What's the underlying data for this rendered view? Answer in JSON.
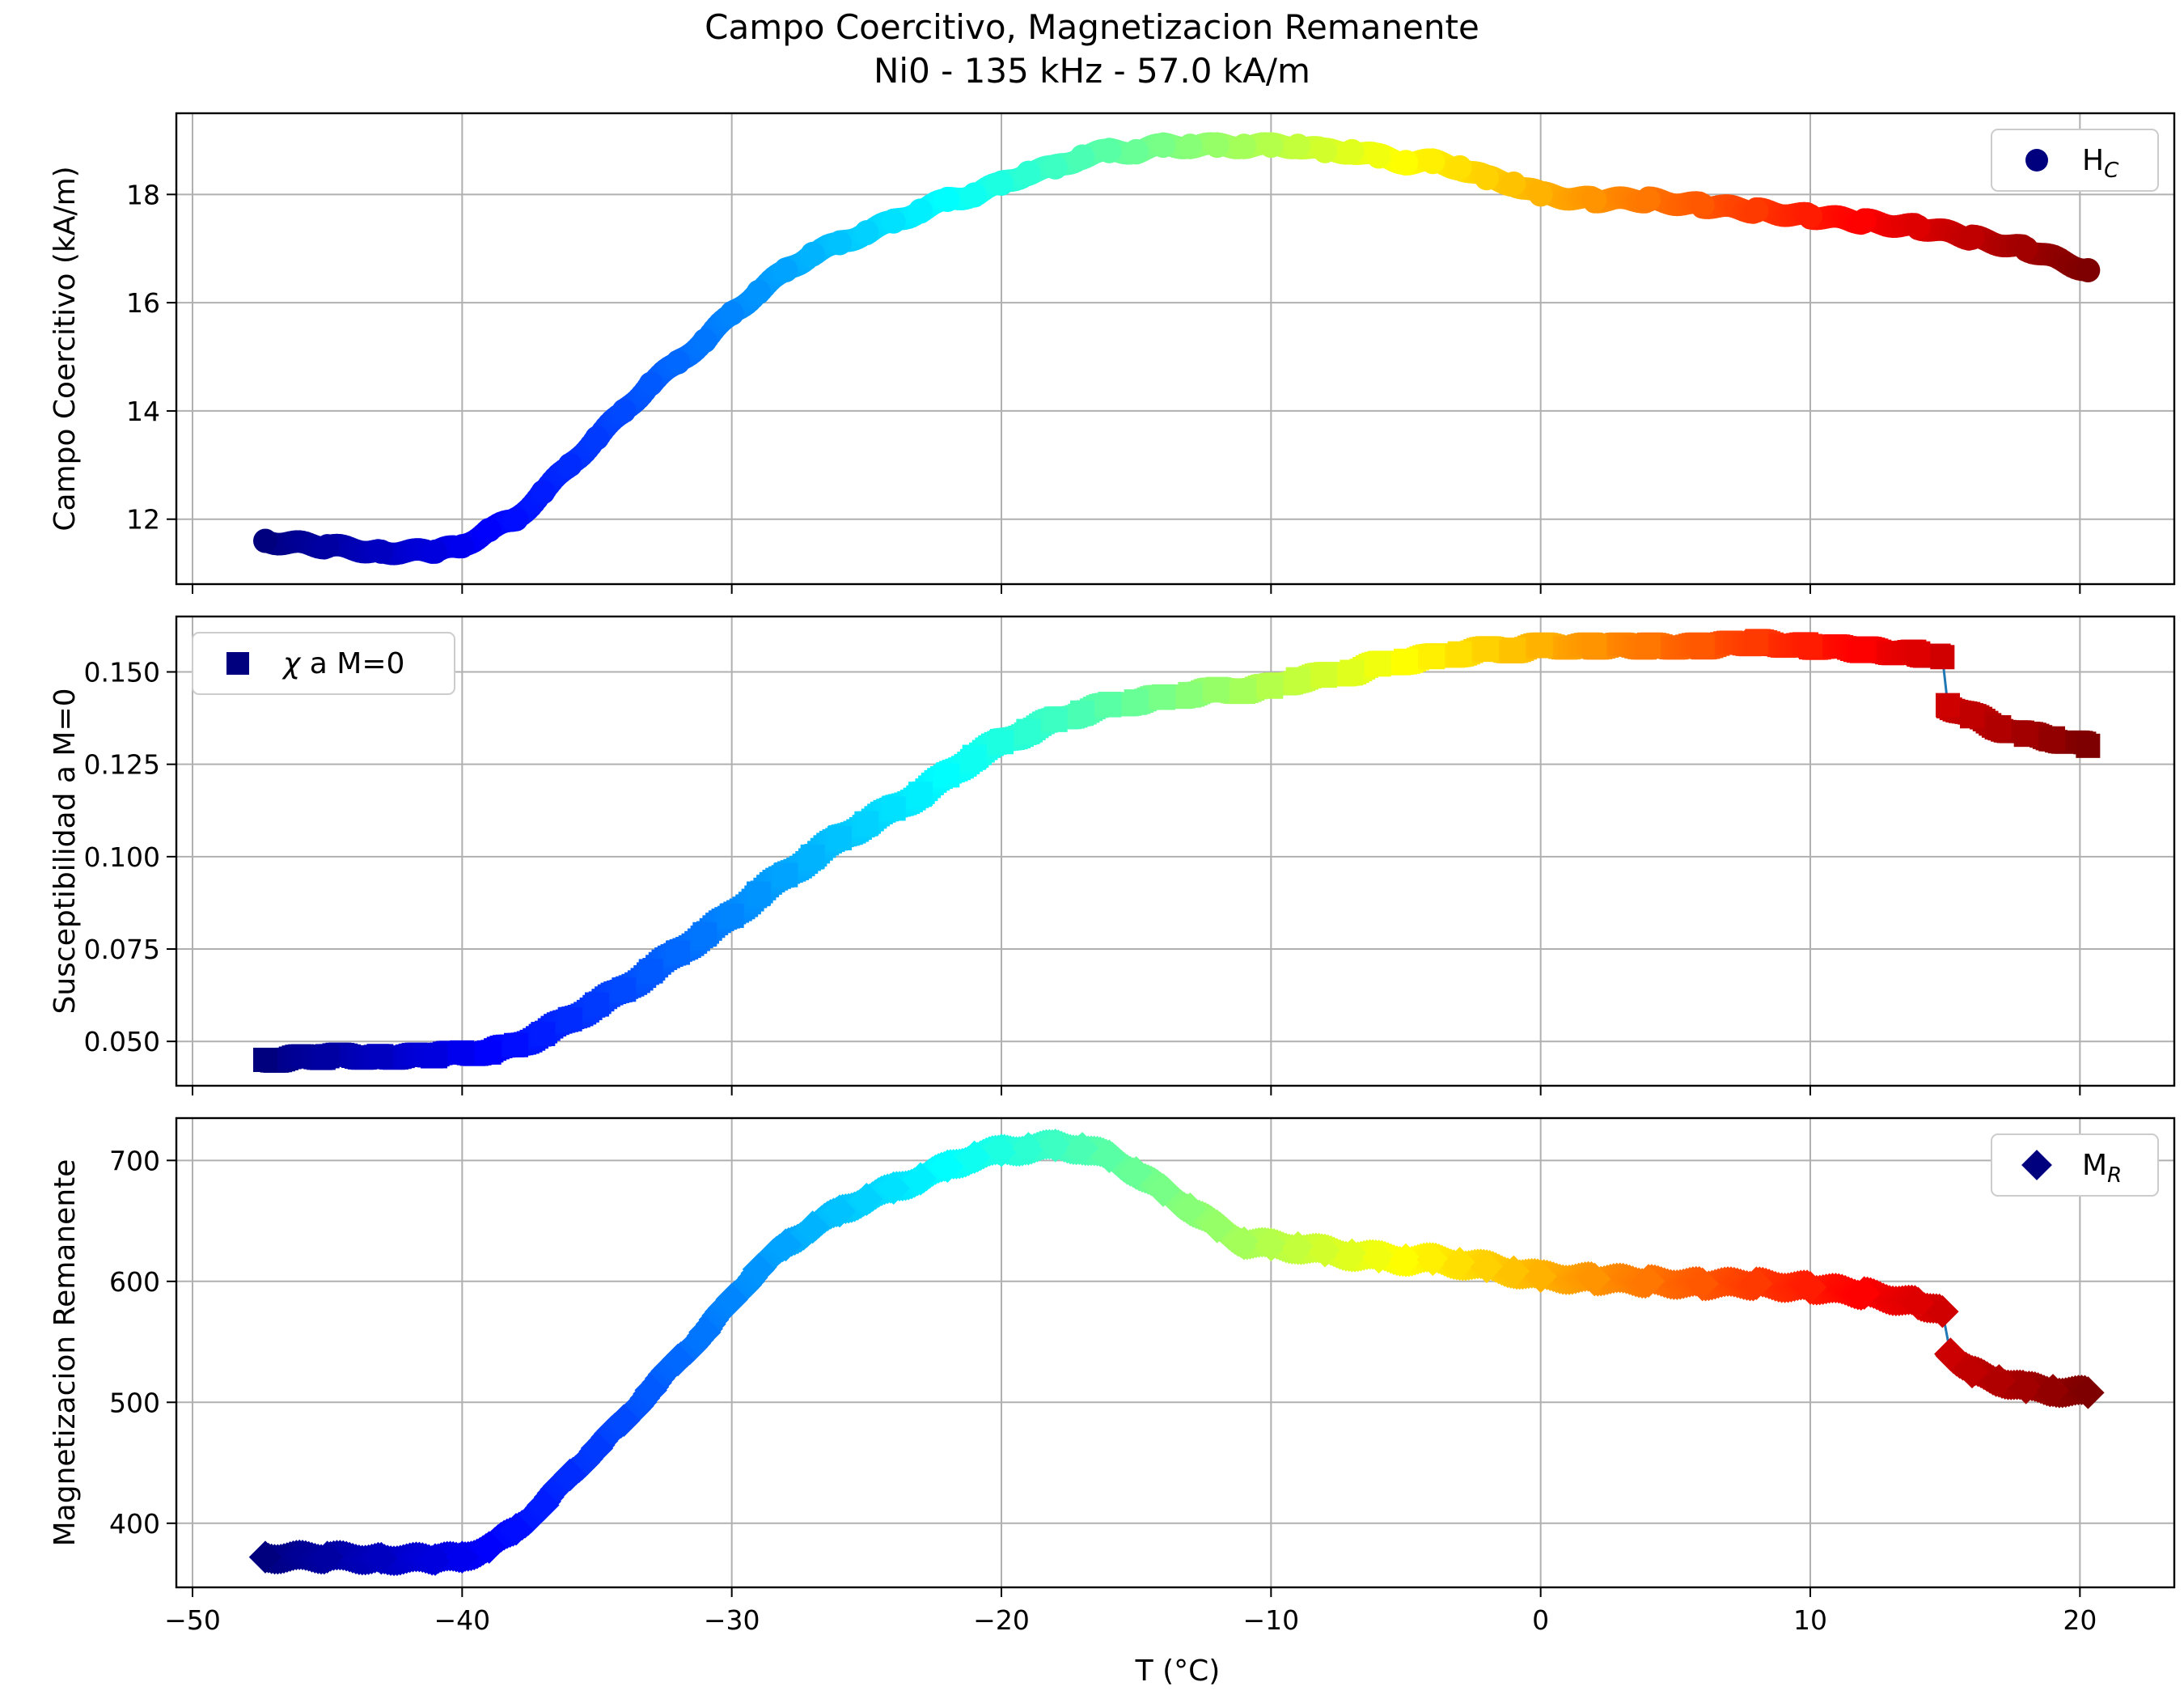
{
  "chart_data": {
    "type": "scatter",
    "title": "Campo Coercitivo, Magnetizacion Remanente",
    "subtitle": "Ni0 - 135 kHz - 57.0 kA/m",
    "xlabel": "T (°C)",
    "xlim": [
      -50.6,
      23.5
    ],
    "x_ticks": [
      -50,
      -40,
      -30,
      -20,
      -10,
      0,
      10,
      20
    ],
    "x_tick_labels": [
      "−50",
      "−40",
      "−30",
      "−20",
      "−10",
      "0",
      "10",
      "20"
    ],
    "colormap": "jet",
    "colors": {
      "jet": [
        "#00007f",
        "#0000ff",
        "#007fff",
        "#00ffff",
        "#7fff7f",
        "#ffff00",
        "#ff7f00",
        "#ff0000",
        "#7f0000"
      ],
      "legend_marker": "#00007f",
      "connector_line": "#1f77b4",
      "grid": "#b0b0b0"
    },
    "panels": [
      {
        "id": "hc",
        "ylabel": "Campo Coercitivo (kA/m)",
        "ylim": [
          10.8,
          19.5
        ],
        "y_ticks": [
          12,
          14,
          16,
          18
        ],
        "y_tick_labels": [
          "12",
          "14",
          "16",
          "18"
        ],
        "marker": "circle",
        "legend": {
          "label_main": "H",
          "label_sub": "C",
          "position": "top-right"
        },
        "series": [
          {
            "name": "H_C",
            "x": [
              -47.3,
              -45,
              -43,
              -41,
              -40,
              -39,
              -38,
              -37,
              -36,
              -35,
              -34,
              -33,
              -32,
              -31,
              -30,
              -29,
              -28,
              -27,
              -26,
              -25,
              -24,
              -23,
              -22,
              -21,
              -20,
              -19,
              -18,
              -17,
              -16,
              -15,
              -14,
              -13,
              -12,
              -11,
              -10,
              -9,
              -8,
              -7,
              -6,
              -5,
              -4,
              -3,
              -2,
              -1,
              0,
              2,
              4,
              6,
              8,
              10,
              12,
              14,
              16,
              18,
              20.3
            ],
            "y": [
              11.6,
              11.5,
              11.4,
              11.4,
              11.5,
              11.8,
              12.0,
              12.5,
              13.0,
              13.5,
              14.0,
              14.5,
              14.9,
              15.3,
              15.8,
              16.2,
              16.6,
              16.9,
              17.1,
              17.3,
              17.5,
              17.7,
              17.9,
              18.0,
              18.2,
              18.4,
              18.5,
              18.7,
              18.8,
              18.8,
              18.9,
              18.9,
              18.9,
              18.9,
              18.9,
              18.9,
              18.8,
              18.8,
              18.7,
              18.6,
              18.6,
              18.5,
              18.3,
              18.2,
              18.0,
              17.9,
              17.9,
              17.8,
              17.7,
              17.6,
              17.5,
              17.4,
              17.2,
              17.0,
              16.6
            ]
          }
        ]
      },
      {
        "id": "chi",
        "ylabel": "Susceptibilidad a M=0",
        "ylim": [
          0.038,
          0.165
        ],
        "y_ticks": [
          0.05,
          0.075,
          0.1,
          0.125,
          0.15
        ],
        "y_tick_labels": [
          "0.050",
          "0.075",
          "0.100",
          "0.125",
          "0.150"
        ],
        "marker": "square",
        "legend": {
          "label_main": "χ a M=0",
          "position": "top-left"
        },
        "series": [
          {
            "name": "χ a M=0",
            "x": [
              -47.3,
              -45,
              -43,
              -41,
              -40,
              -39,
              -38,
              -37,
              -36,
              -35,
              -34,
              -33,
              -32,
              -31,
              -30,
              -29,
              -28,
              -27,
              -26,
              -25,
              -24,
              -23,
              -22,
              -21,
              -20,
              -19,
              -18,
              -17,
              -16,
              -15,
              -14,
              -13,
              -12,
              -11,
              -10,
              -9,
              -8,
              -7,
              -6,
              -5,
              -4,
              -3,
              -2,
              -1,
              0,
              2,
              4,
              6,
              8,
              10,
              12,
              14,
              14.9,
              15.1,
              16,
              17,
              18,
              19,
              20.3
            ],
            "y": [
              0.045,
              0.046,
              0.046,
              0.046,
              0.047,
              0.047,
              0.049,
              0.052,
              0.056,
              0.06,
              0.064,
              0.069,
              0.074,
              0.079,
              0.084,
              0.09,
              0.095,
              0.1,
              0.105,
              0.109,
              0.113,
              0.117,
              0.122,
              0.127,
              0.131,
              0.134,
              0.137,
              0.139,
              0.141,
              0.142,
              0.143,
              0.144,
              0.145,
              0.145,
              0.146,
              0.148,
              0.149,
              0.15,
              0.152,
              0.153,
              0.154,
              0.155,
              0.156,
              0.156,
              0.157,
              0.157,
              0.157,
              0.157,
              0.158,
              0.157,
              0.156,
              0.155,
              0.154,
              0.141,
              0.138,
              0.135,
              0.133,
              0.132,
              0.13
            ]
          }
        ]
      },
      {
        "id": "mr",
        "ylabel": "Magnetizacion Remanente",
        "ylim": [
          347,
          735
        ],
        "y_ticks": [
          400,
          500,
          600,
          700
        ],
        "y_tick_labels": [
          "400",
          "500",
          "600",
          "700"
        ],
        "marker": "diamond",
        "legend": {
          "label_main": "M",
          "label_sub": "R",
          "position": "top-right"
        },
        "series": [
          {
            "name": "M_R",
            "x": [
              -47.3,
              -45,
              -43,
              -41,
              -40,
              -39,
              -38,
              -37,
              -36,
              -35,
              -34,
              -33,
              -32,
              -31,
              -30,
              -29,
              -28,
              -27,
              -26,
              -25,
              -24,
              -23,
              -22,
              -21,
              -20,
              -19,
              -18,
              -17,
              -16,
              -15,
              -14,
              -13,
              -12,
              -11,
              -10,
              -9,
              -8,
              -7,
              -6,
              -5,
              -4,
              -3,
              -2,
              -1,
              0,
              2,
              4,
              6,
              8,
              10,
              12,
              14,
              14.9,
              15.2,
              16,
              17,
              18,
              19,
              20.3
            ],
            "y": [
              372,
              372,
              371,
              370,
              372,
              380,
              395,
              415,
              440,
              462,
              485,
              510,
              535,
              558,
              585,
              610,
              630,
              645,
              658,
              668,
              677,
              685,
              695,
              703,
              708,
              710,
              712,
              710,
              703,
              690,
              675,
              660,
              645,
              632,
              630,
              628,
              625,
              622,
              620,
              618,
              618,
              615,
              612,
              608,
              604,
              602,
              600,
              598,
              598,
              595,
              590,
              582,
              575,
              540,
              525,
              518,
              512,
              510,
              508
            ]
          }
        ]
      }
    ]
  }
}
